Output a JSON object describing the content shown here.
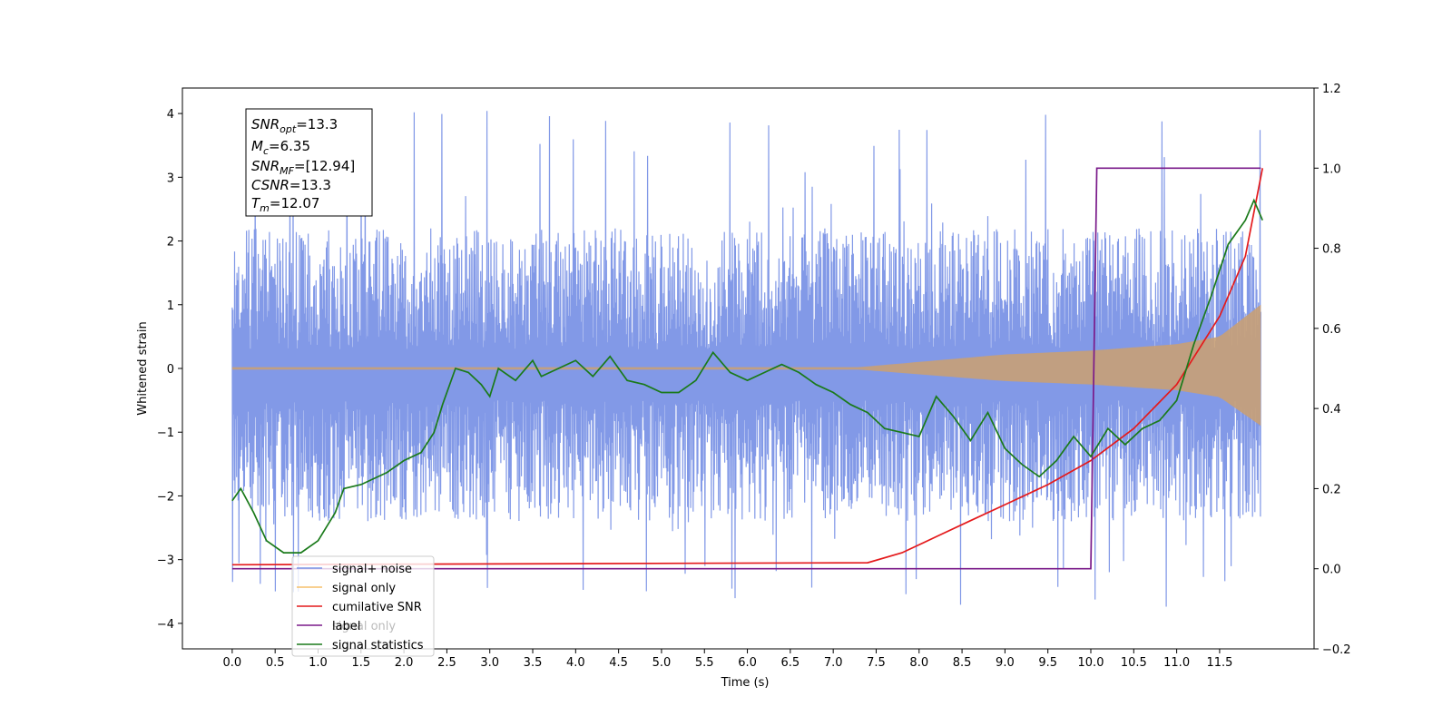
{
  "chart_data": {
    "type": "line",
    "xlabel": "Time (s)",
    "ylabel": "Whitened strain",
    "xlim": [
      -0.58,
      12.6
    ],
    "ylim": [
      -4.4,
      4.4
    ],
    "ylim_right": [
      -0.2,
      1.2
    ],
    "x_ticks": [
      "0.0",
      "0.5",
      "1.0",
      "1.5",
      "2.0",
      "2.5",
      "3.0",
      "3.5",
      "4.0",
      "4.5",
      "5.0",
      "5.5",
      "6.0",
      "6.5",
      "7.0",
      "7.5",
      "8.0",
      "8.5",
      "9.0",
      "9.5",
      "10.0",
      "10.5",
      "11.0",
      "11.5"
    ],
    "y_ticks_left": [
      "4",
      "3",
      "2",
      "1",
      "0",
      "−1",
      "−2",
      "−3",
      "−4"
    ],
    "y_ticks_right": [
      "1.2",
      "1.0",
      "0.8",
      "0.6",
      "0.4",
      "0.2",
      "0.0",
      "−0.2"
    ],
    "annotation": {
      "snr_opt": "=13.3",
      "mc": "=6.35",
      "snr_mf": "=[12.94]",
      "csnr": "=13.3",
      "tm": "=12.07"
    },
    "legend": {
      "placement": "lower-left",
      "items": [
        {
          "label": "signal+ noise",
          "color": "#7b93e6"
        },
        {
          "label": "signal only",
          "color": "#f5c16b"
        },
        {
          "label": "cumilative SNR",
          "color": "#e41a1c"
        },
        {
          "label": "label",
          "color": "#7a1a8a"
        },
        {
          "label": "signal statistics",
          "color": "#1a7a1a"
        }
      ],
      "overlap_text_1": "signal only",
      "overlap_text_2": "signal statistics"
    },
    "series": [
      {
        "name": "signal+ noise",
        "axis": "left",
        "color": "#7b93e6",
        "x_range": [
          0.0,
          11.98
        ],
        "envelope": [
          2.2,
          -2.4
        ],
        "peak_max": 4.1,
        "peak_min": -3.8
      },
      {
        "name": "signal only",
        "axis": "left",
        "color": "#c8a075",
        "envelope_points": [
          [
            0.0,
            0.02
          ],
          [
            7.3,
            0.02
          ],
          [
            9.0,
            0.22
          ],
          [
            10.0,
            0.28
          ],
          [
            11.0,
            0.38
          ],
          [
            11.5,
            0.5
          ],
          [
            11.98,
            1.0
          ]
        ]
      },
      {
        "name": "cumilative SNR",
        "axis": "right",
        "color": "#e41a1c",
        "points": [
          [
            0.0,
            0.01
          ],
          [
            7.4,
            0.015
          ],
          [
            7.8,
            0.04
          ],
          [
            8.2,
            0.08
          ],
          [
            8.6,
            0.12
          ],
          [
            9.0,
            0.16
          ],
          [
            9.5,
            0.21
          ],
          [
            10.0,
            0.27
          ],
          [
            10.5,
            0.35
          ],
          [
            11.0,
            0.46
          ],
          [
            11.5,
            0.63
          ],
          [
            11.8,
            0.78
          ],
          [
            12.0,
            1.0
          ]
        ]
      },
      {
        "name": "label",
        "axis": "right",
        "color": "#7a1a8a",
        "points": [
          [
            0.0,
            0.0
          ],
          [
            10.0,
            0.0
          ],
          [
            10.07,
            1.0
          ],
          [
            11.98,
            1.0
          ]
        ]
      },
      {
        "name": "signal statistics",
        "axis": "right",
        "color": "#1a7a1a",
        "points": [
          [
            0.0,
            0.17
          ],
          [
            0.1,
            0.2
          ],
          [
            0.25,
            0.14
          ],
          [
            0.4,
            0.07
          ],
          [
            0.6,
            0.04
          ],
          [
            0.8,
            0.04
          ],
          [
            1.0,
            0.07
          ],
          [
            1.2,
            0.14
          ],
          [
            1.3,
            0.2
          ],
          [
            1.5,
            0.21
          ],
          [
            1.8,
            0.24
          ],
          [
            2.0,
            0.27
          ],
          [
            2.2,
            0.29
          ],
          [
            2.35,
            0.34
          ],
          [
            2.45,
            0.41
          ],
          [
            2.6,
            0.5
          ],
          [
            2.75,
            0.49
          ],
          [
            2.9,
            0.46
          ],
          [
            3.0,
            0.43
          ],
          [
            3.1,
            0.5
          ],
          [
            3.3,
            0.47
          ],
          [
            3.5,
            0.52
          ],
          [
            3.6,
            0.48
          ],
          [
            3.8,
            0.5
          ],
          [
            4.0,
            0.52
          ],
          [
            4.2,
            0.48
          ],
          [
            4.4,
            0.53
          ],
          [
            4.6,
            0.47
          ],
          [
            4.8,
            0.46
          ],
          [
            5.0,
            0.44
          ],
          [
            5.2,
            0.44
          ],
          [
            5.4,
            0.47
          ],
          [
            5.6,
            0.54
          ],
          [
            5.8,
            0.49
          ],
          [
            6.0,
            0.47
          ],
          [
            6.2,
            0.49
          ],
          [
            6.4,
            0.51
          ],
          [
            6.6,
            0.49
          ],
          [
            6.8,
            0.46
          ],
          [
            7.0,
            0.44
          ],
          [
            7.2,
            0.41
          ],
          [
            7.4,
            0.39
          ],
          [
            7.6,
            0.35
          ],
          [
            7.8,
            0.34
          ],
          [
            8.0,
            0.33
          ],
          [
            8.1,
            0.38
          ],
          [
            8.2,
            0.43
          ],
          [
            8.4,
            0.38
          ],
          [
            8.6,
            0.32
          ],
          [
            8.8,
            0.39
          ],
          [
            9.0,
            0.3
          ],
          [
            9.2,
            0.26
          ],
          [
            9.4,
            0.23
          ],
          [
            9.6,
            0.27
          ],
          [
            9.8,
            0.33
          ],
          [
            10.0,
            0.28
          ],
          [
            10.2,
            0.35
          ],
          [
            10.4,
            0.31
          ],
          [
            10.6,
            0.35
          ],
          [
            10.8,
            0.37
          ],
          [
            11.0,
            0.42
          ],
          [
            11.2,
            0.56
          ],
          [
            11.4,
            0.68
          ],
          [
            11.6,
            0.81
          ],
          [
            11.8,
            0.87
          ],
          [
            11.9,
            0.92
          ],
          [
            12.0,
            0.87
          ]
        ]
      }
    ]
  }
}
